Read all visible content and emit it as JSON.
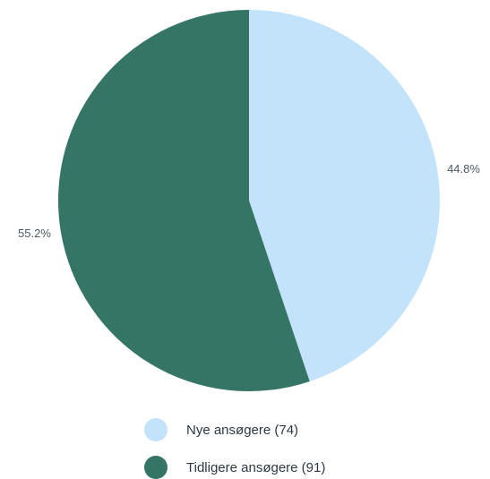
{
  "chart_data": {
    "type": "pie",
    "title": "",
    "categories": [
      "Nye ansøgere",
      "Tidligere ansøgere"
    ],
    "values": [
      74,
      91
    ],
    "percent_labels": [
      "44.8%",
      "55.2%"
    ],
    "legend_labels": [
      "Nye ansøgere (74)",
      "Tidligere ansøgere (91)"
    ],
    "colors": [
      "#c3e3fb",
      "#357565"
    ],
    "start_angle_deg": 0,
    "direction": "clockwise",
    "legend_position": "bottom-center"
  }
}
